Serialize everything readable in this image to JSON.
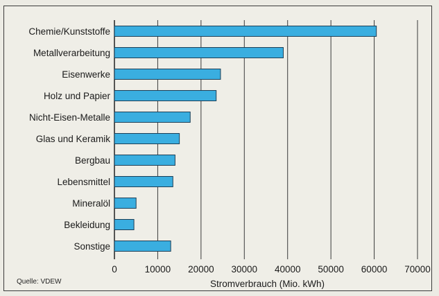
{
  "source_note": "Quelle: VDEW",
  "colors": {
    "bar": "#3aaee0",
    "bar_stroke": "#1c3f57",
    "grid": "#3a3a3a",
    "axis": "#222222"
  },
  "chart_data": {
    "type": "bar",
    "orientation": "horizontal",
    "categories": [
      "Chemie/Kunststoffe",
      "Metallverarbeitung",
      "Eisenwerke",
      "Holz und Papier",
      "Nicht-Eisen-Metalle",
      "Glas und Keramik",
      "Bergbau",
      "Lebensmittel",
      "Mineralöl",
      "Bekleidung",
      "Sonstige"
    ],
    "values": [
      60500,
      39000,
      24500,
      23500,
      17500,
      15000,
      14000,
      13500,
      5000,
      4500,
      13000
    ],
    "xlabel": "Stromverbrauch (Mio. kWh)",
    "xlim": [
      0,
      70000
    ],
    "xticks": [
      "0",
      "10000",
      "20000",
      "30000",
      "40000",
      "50000",
      "60000",
      "70000"
    ],
    "grid": true
  }
}
